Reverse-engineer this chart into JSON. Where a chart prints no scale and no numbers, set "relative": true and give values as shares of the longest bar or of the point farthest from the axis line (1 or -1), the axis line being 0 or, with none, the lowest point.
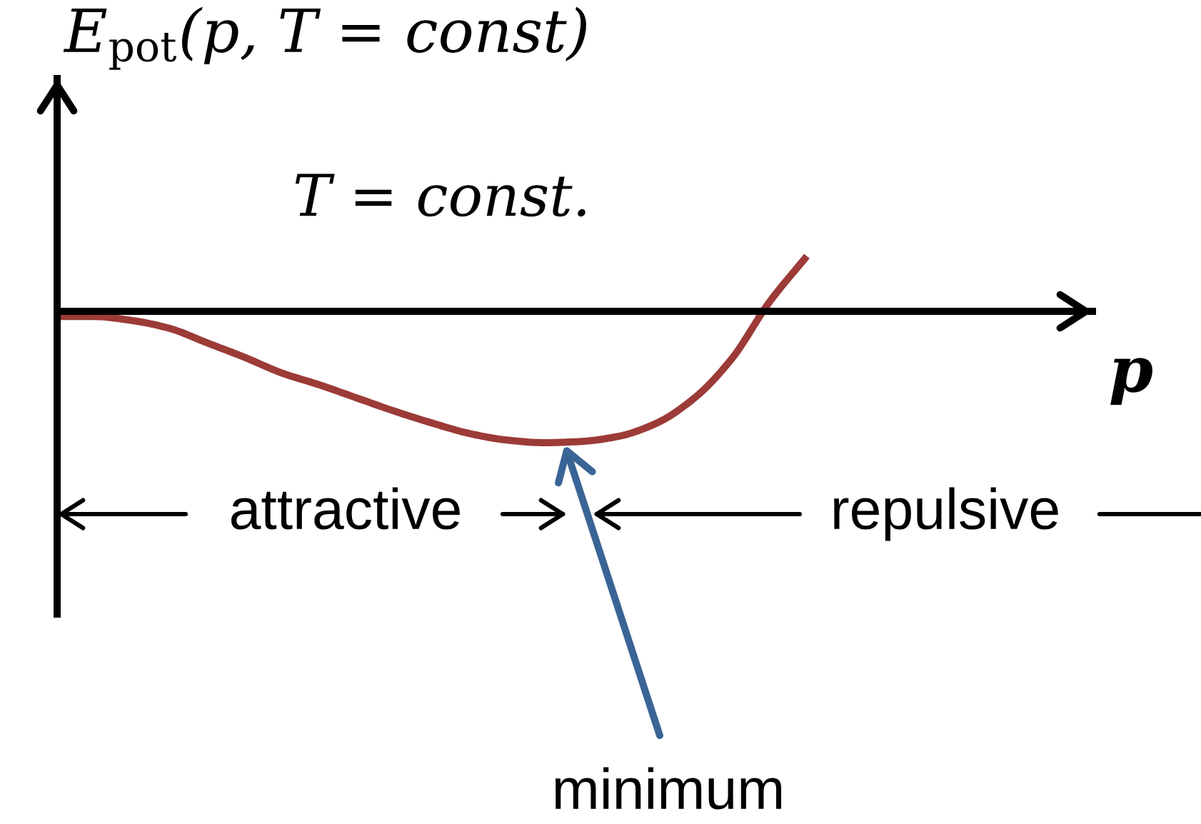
{
  "chart_data": {
    "type": "line",
    "relative": true,
    "ylabel": "E$_{pot}$(p, T = const)",
    "xlabel": "p",
    "annotations": [
      "T = const.",
      "attractive",
      "repulsive",
      "minimum"
    ],
    "categories": [
      null,
      null,
      null,
      null,
      null,
      null,
      null,
      null,
      null,
      null,
      null,
      null,
      null,
      null,
      null,
      null,
      null,
      null,
      null,
      null,
      null
    ],
    "series": [
      {
        "color": "#9c3b37",
        "line_style": "solid",
        "values": [
          -0.04,
          -0.04,
          -0.07,
          -0.13,
          -0.24,
          -0.35,
          -0.47,
          -0.56,
          -0.66,
          -0.76,
          -0.85,
          -0.93,
          -0.98,
          -1.0,
          -0.99,
          -0.95,
          -0.85,
          -0.66,
          -0.36,
          0.07,
          0.42
        ]
      }
    ]
  }
}
